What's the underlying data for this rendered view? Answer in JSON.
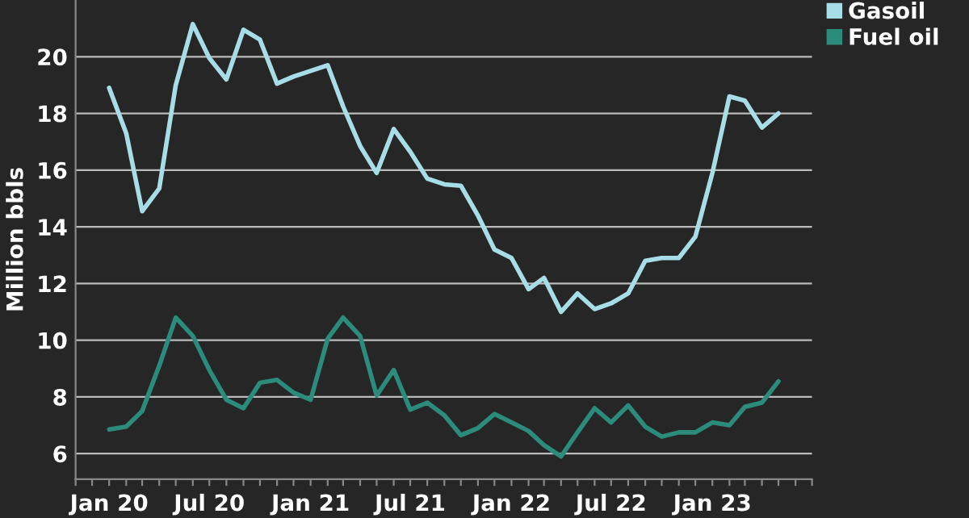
{
  "chart_data": {
    "type": "line",
    "ylabel": "Million bbls",
    "x": [
      "2020-01",
      "2020-02",
      "2020-03",
      "2020-04",
      "2020-05",
      "2020-06",
      "2020-07",
      "2020-08",
      "2020-09",
      "2020-10",
      "2020-11",
      "2020-12",
      "2021-01",
      "2021-02",
      "2021-03",
      "2021-04",
      "2021-05",
      "2021-06",
      "2021-07",
      "2021-08",
      "2021-09",
      "2021-10",
      "2021-11",
      "2021-12",
      "2022-01",
      "2022-02",
      "2022-03",
      "2022-04",
      "2022-05",
      "2022-06",
      "2022-07",
      "2022-08",
      "2022-09",
      "2022-10",
      "2022-11",
      "2022-12",
      "2023-01",
      "2023-02",
      "2023-03",
      "2023-04",
      "2023-05"
    ],
    "series": [
      {
        "name": "Gasoil",
        "color": "#a6dde6",
        "values": [
          18.9,
          17.3,
          14.55,
          15.35,
          19.0,
          21.15,
          19.95,
          19.2,
          20.95,
          20.6,
          19.05,
          19.3,
          19.5,
          19.7,
          18.25,
          16.85,
          15.9,
          17.45,
          16.65,
          15.7,
          15.5,
          15.45,
          14.4,
          13.2,
          12.9,
          11.8,
          12.2,
          11.0,
          11.65,
          11.1,
          11.3,
          11.65,
          12.8,
          12.9,
          12.9,
          13.65,
          15.9,
          18.6,
          18.45,
          17.5,
          18.0
        ]
      },
      {
        "name": "Fuel oil",
        "color": "#2b8c7c",
        "values": [
          6.85,
          6.95,
          7.5,
          9.1,
          10.8,
          10.15,
          8.95,
          7.9,
          7.6,
          8.5,
          8.6,
          8.15,
          7.9,
          10.05,
          10.8,
          10.15,
          8.05,
          8.95,
          7.55,
          7.8,
          7.35,
          6.65,
          6.9,
          7.4,
          7.1,
          6.8,
          6.3,
          5.9,
          6.75,
          7.6,
          7.1,
          7.7,
          6.95,
          6.6,
          6.75,
          6.75,
          7.1,
          7.0,
          7.65,
          7.8,
          8.55
        ]
      }
    ],
    "xlim": [
      "2019-11",
      "2023-07"
    ],
    "xticks": [
      {
        "value": "2019-11",
        "label": null
      },
      {
        "value": "2019-12",
        "label": null
      },
      {
        "value": "2020-01",
        "label": "Jan 20"
      },
      {
        "value": "2020-02",
        "label": null
      },
      {
        "value": "2020-03",
        "label": null
      },
      {
        "value": "2020-04",
        "label": null
      },
      {
        "value": "2020-05",
        "label": null
      },
      {
        "value": "2020-06",
        "label": null
      },
      {
        "value": "2020-07",
        "label": "Jul 20"
      },
      {
        "value": "2020-08",
        "label": null
      },
      {
        "value": "2020-09",
        "label": null
      },
      {
        "value": "2020-10",
        "label": null
      },
      {
        "value": "2020-11",
        "label": null
      },
      {
        "value": "2020-12",
        "label": null
      },
      {
        "value": "2021-01",
        "label": "Jan 21"
      },
      {
        "value": "2021-02",
        "label": null
      },
      {
        "value": "2021-03",
        "label": null
      },
      {
        "value": "2021-04",
        "label": null
      },
      {
        "value": "2021-05",
        "label": null
      },
      {
        "value": "2021-06",
        "label": null
      },
      {
        "value": "2021-07",
        "label": "Jul 21"
      },
      {
        "value": "2021-08",
        "label": null
      },
      {
        "value": "2021-09",
        "label": null
      },
      {
        "value": "2021-10",
        "label": null
      },
      {
        "value": "2021-11",
        "label": null
      },
      {
        "value": "2021-12",
        "label": null
      },
      {
        "value": "2022-01",
        "label": "Jan 22"
      },
      {
        "value": "2022-02",
        "label": null
      },
      {
        "value": "2022-03",
        "label": null
      },
      {
        "value": "2022-04",
        "label": null
      },
      {
        "value": "2022-05",
        "label": null
      },
      {
        "value": "2022-06",
        "label": null
      },
      {
        "value": "2022-07",
        "label": "Jul 22"
      },
      {
        "value": "2022-08",
        "label": null
      },
      {
        "value": "2022-09",
        "label": null
      },
      {
        "value": "2022-10",
        "label": null
      },
      {
        "value": "2022-11",
        "label": null
      },
      {
        "value": "2022-12",
        "label": null
      },
      {
        "value": "2023-01",
        "label": "Jan 23"
      },
      {
        "value": "2023-02",
        "label": null
      },
      {
        "value": "2023-03",
        "label": null
      },
      {
        "value": "2023-04",
        "label": null
      },
      {
        "value": "2023-05",
        "label": null
      },
      {
        "value": "2023-06",
        "label": null
      },
      {
        "value": "2023-07",
        "label": null
      }
    ],
    "ylim": [
      5.1,
      22
    ],
    "yticks": [
      6,
      8,
      10,
      12,
      14,
      16,
      18,
      20
    ],
    "grid": "y",
    "legend": "top right",
    "marker": "none",
    "line_style": "solid"
  }
}
